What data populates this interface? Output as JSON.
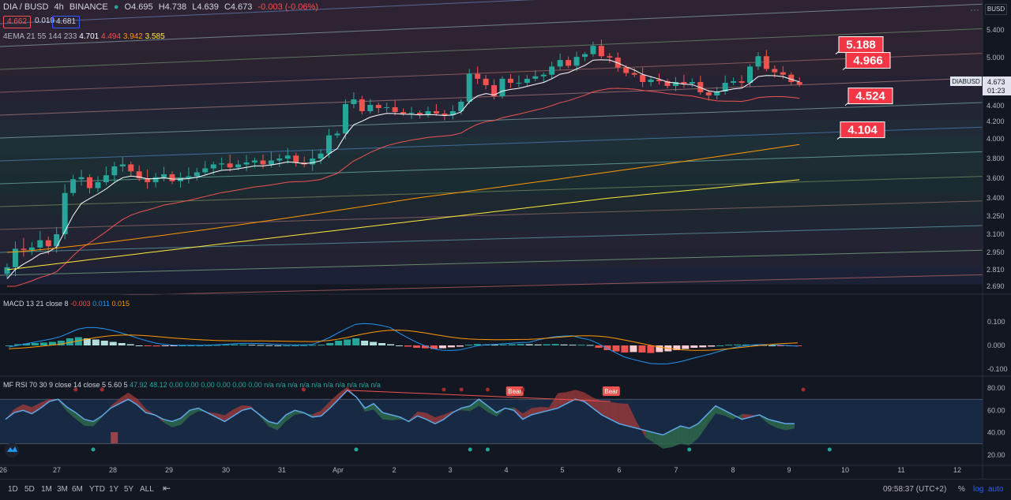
{
  "header": {
    "symbol": "DIA / BUSD",
    "interval": "4h",
    "exchange": "BINANCE",
    "open": "O4.695",
    "high": "H4.738",
    "low": "L4.639",
    "close": "C4.673",
    "change": "-0.003 (-0.06%)",
    "bid": "4.662",
    "spread": "0.019",
    "ask": "4.681"
  },
  "ema_legend": {
    "label": "4EMA 21 55 144 233",
    "v1": "4.701",
    "v2": "4.494",
    "v3": "3.942",
    "v4": "3.585"
  },
  "macd_legend": {
    "label": "MACD 13 21 close 8",
    "v1": "-0.003",
    "v2": "0.011",
    "v3": "0.015"
  },
  "mfrsi_legend": {
    "label": "MF RSI 70 30 9 close 14 close 5 5.60 5",
    "vals": "47.92  48.12  0.00  0.00  0.00  0.00  0.00  0.00  n/a  n/a  n/a  n/a  n/a  n/a  n/a  n/a  n/a  n/a"
  },
  "axis_currency": "BUSD",
  "price_tag": {
    "symbol": "DIABUSD",
    "price": "4.673",
    "countdown": "01:23"
  },
  "callouts": [
    "5.188",
    "4.966",
    "4.524",
    "4.104"
  ],
  "bear_labels": [
    "Bear",
    "Bear"
  ],
  "bottom": {
    "ranges": [
      "1D",
      "5D",
      "1M",
      "3M",
      "6M",
      "YTD",
      "1Y",
      "5Y",
      "ALL"
    ],
    "time": "09:58:37 (UTC+2)",
    "pct": "%",
    "log": "log",
    "auto": "auto"
  },
  "colors": {
    "up": "#26a69a",
    "down": "#ef5350",
    "bg": "#131722"
  },
  "chart_data": [
    {
      "type": "candlestick",
      "title": "DIA / BUSD 4h BINANCE",
      "x_ticks": [
        "26",
        "27",
        "28",
        "29",
        "30",
        "31",
        "Apr",
        "2",
        "3",
        "4",
        "5",
        "6",
        "7",
        "8",
        "9",
        "10",
        "11",
        "12"
      ],
      "y_ticks": [
        5.4,
        5.0,
        4.7,
        4.4,
        4.2,
        4.0,
        3.8,
        3.6,
        3.4,
        3.25,
        3.1,
        2.95,
        2.81,
        2.69
      ],
      "y_tick_labels": [
        "5.400",
        "5.000",
        "4.700",
        "4.400",
        "4.200",
        "4.000",
        "3.800",
        "3.600",
        "3.400",
        "3.250",
        "3.100",
        "2.950",
        "2.810",
        "2.690"
      ],
      "closes": [
        2.83,
        2.98,
        2.97,
        2.99,
        3.05,
        3.0,
        3.1,
        3.45,
        3.59,
        3.61,
        3.5,
        3.56,
        3.63,
        3.72,
        3.74,
        3.67,
        3.6,
        3.56,
        3.61,
        3.64,
        3.57,
        3.6,
        3.62,
        3.66,
        3.7,
        3.74,
        3.75,
        3.71,
        3.74,
        3.76,
        3.78,
        3.74,
        3.78,
        3.8,
        3.83,
        3.76,
        3.74,
        3.8,
        3.85,
        4.04,
        4.06,
        4.42,
        4.48,
        4.33,
        4.41,
        4.37,
        4.38,
        4.32,
        4.3,
        4.31,
        4.29,
        4.33,
        4.3,
        4.28,
        4.33,
        4.45,
        4.8,
        4.74,
        4.66,
        4.52,
        4.74,
        4.69,
        4.69,
        4.74,
        4.77,
        4.79,
        4.89,
        4.97,
        4.9,
        5.01,
        5.05,
        5.17,
        5.02,
        5.0,
        4.88,
        4.81,
        4.79,
        4.7,
        4.73,
        4.71,
        4.65,
        4.7,
        4.68,
        4.7,
        4.57,
        4.53,
        4.58,
        4.69,
        4.71,
        4.69,
        4.89,
        5.02,
        4.86,
        4.82,
        4.79,
        4.7,
        4.67
      ],
      "ema21_end": 4.701,
      "ema55_end": 4.494,
      "ema144_end": 3.942,
      "ema233_end": 3.585,
      "horizontal_levels": [
        5.188,
        4.966,
        4.524,
        4.104
      ],
      "last_price": 4.673
    },
    {
      "type": "bar",
      "title": "MACD 13 21 close 8",
      "y_ticks": [
        0.1,
        0.0,
        -0.1
      ],
      "y_tick_labels": [
        "0.100",
        "0.000",
        "-0.100"
      ],
      "histogram": [
        0.0,
        0.005,
        0.008,
        0.01,
        0.012,
        0.015,
        0.02,
        0.03,
        0.035,
        0.03,
        0.025,
        0.02,
        0.015,
        0.01,
        0.005,
        0.0,
        -0.002,
        -0.004,
        -0.003,
        -0.002,
        0.0,
        0.0,
        0.0,
        0.001,
        0.002,
        0.003,
        0.004,
        0.004,
        0.003,
        0.002,
        0.001,
        0.0,
        0.0,
        0.0,
        0.001,
        0.002,
        0.003,
        0.01,
        0.02,
        0.025,
        0.03,
        0.02,
        0.015,
        0.01,
        0.005,
        0.0,
        -0.005,
        -0.01,
        -0.012,
        -0.015,
        -0.012,
        -0.008,
        -0.005,
        0.003,
        0.006,
        0.004,
        0.003,
        0.004,
        0.005,
        0.006,
        0.005,
        0.004,
        0.005,
        0.006,
        0.004,
        0.003,
        0.003,
        0.002,
        -0.01,
        -0.02,
        -0.025,
        -0.03,
        -0.028,
        -0.03,
        -0.032,
        -0.028,
        -0.025,
        -0.02,
        -0.015,
        -0.01,
        -0.008,
        -0.005,
        0.0,
        0.003,
        0.004,
        0.004,
        0.003,
        0.002,
        0.0,
        -0.001,
        -0.002,
        -0.003
      ],
      "macd_end": -0.003,
      "signal_end": 0.011
    },
    {
      "type": "line",
      "title": "MF RSI 70 30 9 close 14 close 5 5.60 5",
      "y_ticks": [
        80,
        60,
        40,
        20
      ],
      "y_tick_labels": [
        "80.00",
        "60.00",
        "40.00",
        "20.00"
      ],
      "bands": [
        70,
        30
      ],
      "rsi": [
        52,
        58,
        60,
        57,
        62,
        68,
        70,
        63,
        58,
        52,
        50,
        55,
        62,
        66,
        70,
        65,
        58,
        56,
        52,
        50,
        53,
        60,
        62,
        58,
        54,
        50,
        55,
        60,
        62,
        56,
        50,
        48,
        56,
        60,
        58,
        54,
        55,
        62,
        70,
        78,
        72,
        62,
        66,
        58,
        56,
        54,
        50,
        55,
        52,
        48,
        52,
        58,
        62,
        64,
        70,
        64,
        58,
        62,
        60,
        52,
        56,
        58,
        60,
        62,
        66,
        70,
        68,
        62,
        56,
        52,
        48,
        46,
        44,
        42,
        40,
        38,
        42,
        46,
        44,
        48,
        56,
        64,
        60,
        56,
        52,
        54,
        56,
        52,
        50,
        48,
        48
      ],
      "last_values": [
        47.92,
        48.12
      ]
    }
  ]
}
